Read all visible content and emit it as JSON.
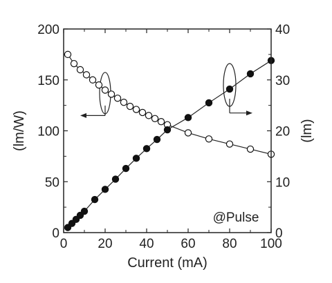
{
  "chart_data": {
    "type": "scatter",
    "xlabel": "Current (mA)",
    "ylabel_left": "(lm/W)",
    "ylabel_right": "(lm)",
    "xlim": [
      0,
      100
    ],
    "ylim_left": [
      0,
      200
    ],
    "ylim_right": [
      0,
      40
    ],
    "xticks": [
      "0",
      "20",
      "40",
      "60",
      "80",
      "100"
    ],
    "yticks_left": [
      "0",
      "50",
      "100",
      "150",
      "200"
    ],
    "yticks_right": [
      "0",
      "10",
      "20",
      "30",
      "40"
    ],
    "annotation": "@Pulse",
    "series": [
      {
        "axis": "left",
        "marker": "open-circle",
        "x": [
          2,
          5,
          8,
          11,
          14,
          17,
          20,
          23,
          26,
          29,
          32,
          35,
          38,
          41,
          44,
          47,
          50,
          60,
          70,
          80,
          90,
          100
        ],
        "y": [
          175,
          166,
          160,
          155,
          150,
          145,
          140,
          136,
          132,
          128,
          124,
          121,
          118,
          115,
          112,
          109,
          106,
          98,
          92,
          87,
          82,
          77
        ]
      },
      {
        "axis": "right",
        "marker": "filled-circle",
        "x": [
          2,
          4,
          6,
          8,
          10,
          15,
          20,
          25,
          30,
          35,
          40,
          45,
          50,
          60,
          70,
          80,
          90,
          100
        ],
        "y": [
          1,
          1.8,
          2.6,
          3.4,
          4.2,
          6.5,
          8.5,
          10.5,
          12.6,
          14.6,
          16.5,
          18.3,
          20.2,
          22.6,
          25.5,
          28.2,
          31.2,
          33.8
        ]
      }
    ],
    "left_arrow": {
      "ellipse_center": [
        20,
        137
      ],
      "arrow_to_x": 8,
      "arrow_y": 115
    },
    "right_arrow": {
      "ellipse_center": [
        80,
        29
      ],
      "arrow_to_x": 91,
      "arrow_y": 23.5
    }
  }
}
